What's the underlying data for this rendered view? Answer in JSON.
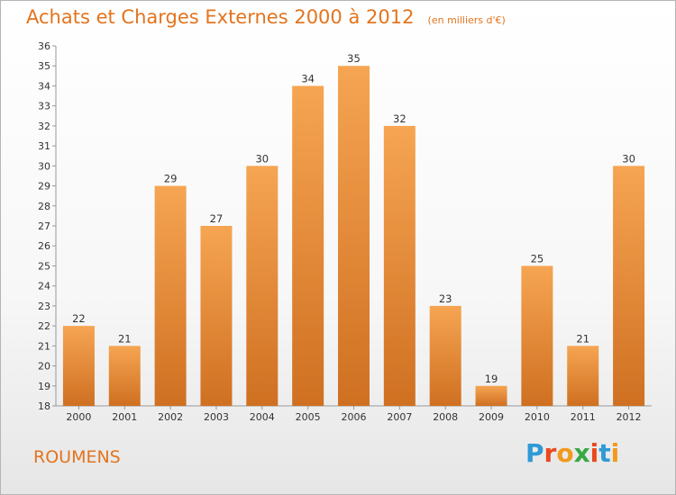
{
  "header": {
    "title": "Achats et Charges Externes 2000 à 2012",
    "subtitle": "(en milliers d'€)"
  },
  "commune": "ROUMENS",
  "logo": {
    "text": "Proxiti",
    "colors": [
      "#2e9ad6",
      "#e84a1e",
      "#f29a1d",
      "#37a844",
      "#e84a1e",
      "#2e9ad6",
      "#f29a1d"
    ]
  },
  "colors": {
    "bar_light": "#f6a552",
    "bar_dark": "#cf7021",
    "title": "#e3741e"
  },
  "chart_data": {
    "type": "bar",
    "categories": [
      "2000",
      "2001",
      "2002",
      "2003",
      "2004",
      "2005",
      "2006",
      "2007",
      "2008",
      "2009",
      "2010",
      "2011",
      "2012"
    ],
    "values": [
      22,
      21,
      29,
      27,
      30,
      34,
      35,
      32,
      23,
      19,
      25,
      21,
      30
    ],
    "title": "Achats et Charges Externes 2000 à 2012",
    "subtitle": "(en milliers d'€)",
    "ylim": [
      18,
      36
    ],
    "yticks": [
      18,
      19,
      20,
      21,
      22,
      23,
      24,
      25,
      26,
      27,
      28,
      29,
      30,
      31,
      32,
      33,
      34,
      35,
      36
    ],
    "grid": false,
    "data_labels": true
  }
}
